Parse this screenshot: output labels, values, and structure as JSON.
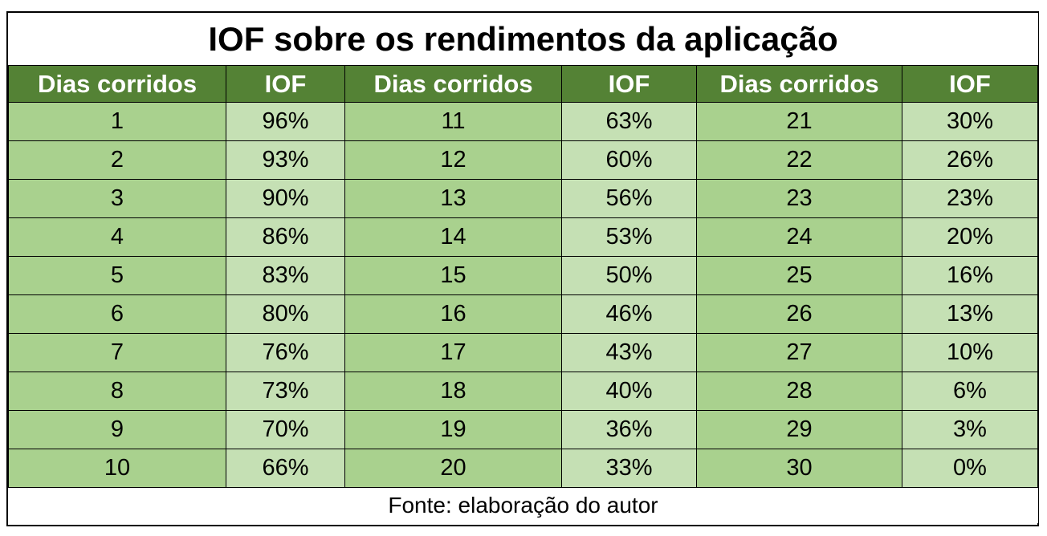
{
  "title": "IOF sobre os rendimentos da aplicação",
  "headers": [
    "Dias corridos",
    "IOF",
    "Dias corridos",
    "IOF",
    "Dias corridos",
    "IOF"
  ],
  "rows": [
    [
      "1",
      "96%",
      "11",
      "63%",
      "21",
      "30%"
    ],
    [
      "2",
      "93%",
      "12",
      "60%",
      "22",
      "26%"
    ],
    [
      "3",
      "90%",
      "13",
      "56%",
      "23",
      "23%"
    ],
    [
      "4",
      "86%",
      "14",
      "53%",
      "24",
      "20%"
    ],
    [
      "5",
      "83%",
      "15",
      "50%",
      "25",
      "16%"
    ],
    [
      "6",
      "80%",
      "16",
      "46%",
      "26",
      "13%"
    ],
    [
      "7",
      "76%",
      "17",
      "43%",
      "27",
      "10%"
    ],
    [
      "8",
      "73%",
      "18",
      "40%",
      "28",
      "6%"
    ],
    [
      "9",
      "70%",
      "19",
      "36%",
      "29",
      "3%"
    ],
    [
      "10",
      "66%",
      "20",
      "33%",
      "30",
      "0%"
    ]
  ],
  "source": "Fonte: elaboração do autor",
  "colors": {
    "header_bg": "#548235",
    "header_text": "#ffffff",
    "day_col_bg": "#a9d18e",
    "iof_col_bg": "#c5e0b4"
  }
}
